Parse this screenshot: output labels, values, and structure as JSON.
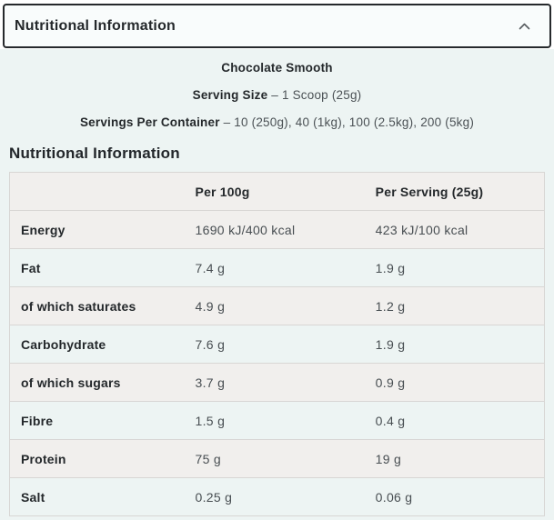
{
  "accordion": {
    "title": "Nutritional Information",
    "chevron_icon": "chevron-up",
    "expanded": true
  },
  "intro": {
    "flavour": "Chocolate Smooth",
    "serving_size_label": "Serving Size",
    "serving_size_value": "– 1 Scoop (25g)",
    "servings_label": "Servings Per Container",
    "servings_value": "– 10 (250g), 40 (1kg), 100 (2.5kg), 200 (5kg)"
  },
  "section": {
    "title": "Nutritional Information"
  },
  "table": {
    "headers": [
      "",
      "Per 100g",
      "Per Serving (25g)"
    ],
    "rows": [
      [
        "Energy",
        "1690 kJ/400 kcal",
        "423 kJ/100 kcal"
      ],
      [
        "Fat",
        "7.4 g",
        "1.9 g"
      ],
      [
        "of which saturates",
        "4.9 g",
        "1.2 g"
      ],
      [
        "Carbohydrate",
        "7.6 g",
        "1.9 g"
      ],
      [
        "of which sugars",
        "3.7 g",
        "0.9 g"
      ],
      [
        "Fibre",
        "1.5 g",
        "0.4 g"
      ],
      [
        "Protein",
        "75 g",
        "19 g"
      ],
      [
        "Salt",
        "0.25 g",
        "0.06 g"
      ]
    ]
  },
  "colors": {
    "content_background": "#edf4f3",
    "row_stripe": "#f1efed",
    "header_border": "#26292c",
    "text_dark": "#24282b",
    "text_value": "#484e52",
    "divider": "#d8d6d4"
  }
}
